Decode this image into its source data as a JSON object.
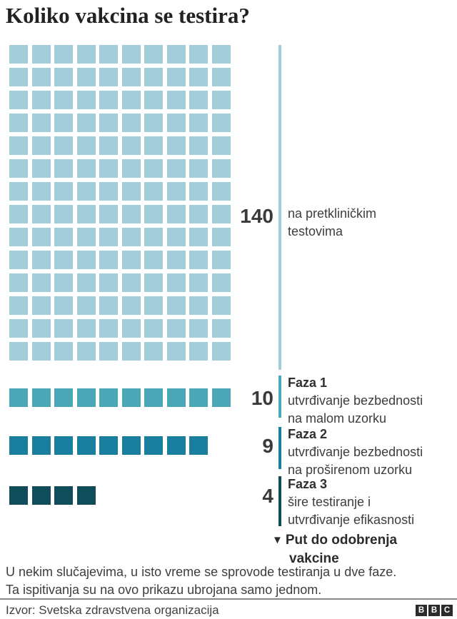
{
  "title": "Koliko vakcina se testira?",
  "colors": {
    "preclinical": "#a4cdda",
    "phase1": "#4ba7b6",
    "phase2": "#1a7f9e",
    "phase3": "#104c5a",
    "number_text": "#3a3a3a",
    "body_text": "#3d3d41",
    "title_text": "#222222",
    "divider": "#888888",
    "logo_block": "#2b2b2b"
  },
  "chart_data": {
    "type": "waffle",
    "title": "Koliko vakcina se testira?",
    "legend_position": "right",
    "grid": "off",
    "columns_in_grid": 10,
    "groups": [
      {
        "name": "pretklinicki-testovi",
        "value": 140,
        "phase": "",
        "label_lines": [
          "na pretkliničkim",
          "testovima"
        ],
        "color": "#a4cdda"
      },
      {
        "name": "faza-1",
        "value": 10,
        "phase": "Faza 1",
        "label_lines": [
          "utvrđivanje bezbednosti",
          "na malom uzorku"
        ],
        "color": "#4ba7b6"
      },
      {
        "name": "faza-2",
        "value": 9,
        "phase": "Faza 2",
        "label_lines": [
          "utvrđivanje bezbednosti",
          "na proširenom uzorku"
        ],
        "color": "#1a7f9e"
      },
      {
        "name": "faza-3",
        "value": 4,
        "phase": "Faza 3",
        "label_lines": [
          "šire testiranje i",
          "utvrđivanje efikasnosti"
        ],
        "color": "#104c5a"
      }
    ]
  },
  "path_note": {
    "arrow": "▼",
    "line1": "Put do odobrenja",
    "line2": "vakcine"
  },
  "footnote": {
    "lines": [
      "U nekim slučajevima, u isto vreme se sprovode testiranja u dve faze.",
      "Ta ispitivanja su na ovo prikazu ubrojana samo jednom."
    ]
  },
  "source": "Izvor: Svetska zdravstvena organizacija",
  "logo": {
    "letters": [
      "B",
      "B",
      "C"
    ]
  }
}
